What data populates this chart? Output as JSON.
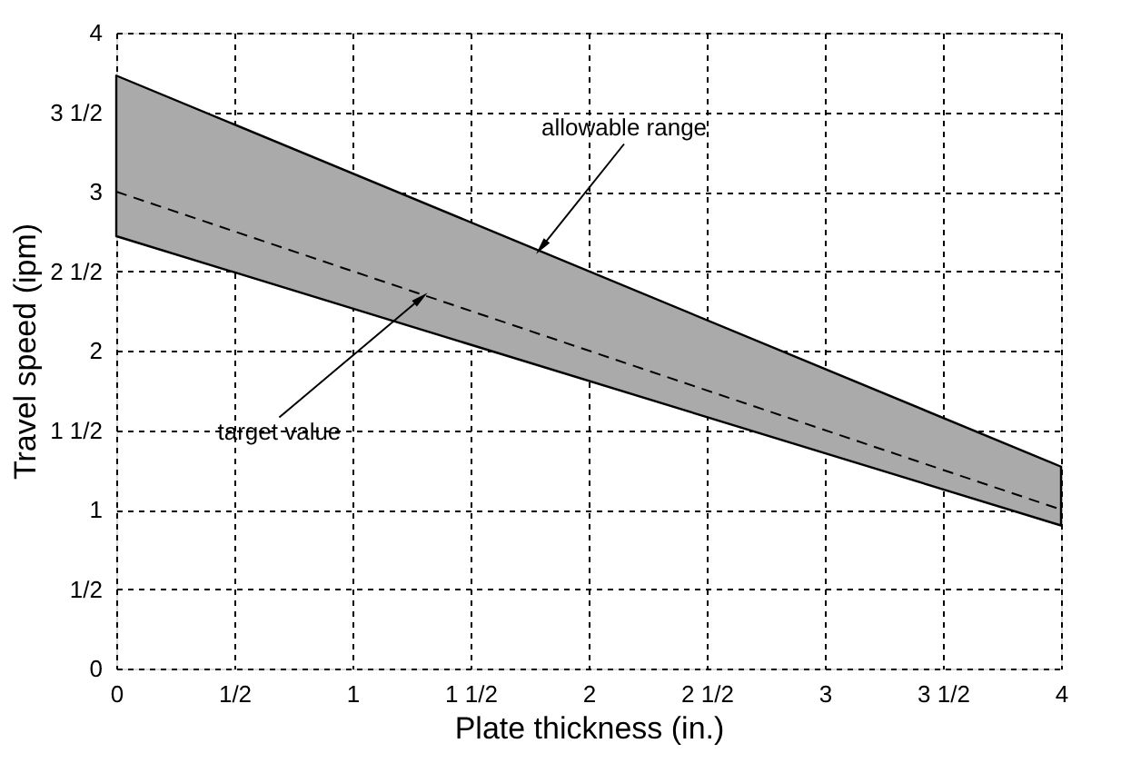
{
  "chart_data": {
    "type": "line",
    "xlabel": "Plate thickness (in.)",
    "ylabel": "Travel speed (ipm)",
    "x": [
      0,
      4
    ],
    "series": [
      {
        "color": "#000000",
        "values": [
          3.0,
          1.0
        ],
        "lower": [
          2.72,
          0.9
        ],
        "upper": [
          3.73,
          1.27
        ],
        "line_style": "dashed"
      }
    ],
    "xlim": [
      0,
      4
    ],
    "ylim": [
      0,
      4
    ],
    "xticks": [
      0,
      {
        "value": 0.5,
        "label": "1/2"
      },
      1,
      {
        "value": 1.5,
        "label": "1 1/2"
      },
      2,
      {
        "value": 2.5,
        "label": "2 1/2"
      },
      3,
      {
        "value": 3.5,
        "label": "3 1/2"
      },
      4
    ],
    "yticks": [
      0,
      {
        "value": 0.5,
        "label": "1/2"
      },
      1,
      {
        "value": 1.5,
        "label": "1 1/2"
      },
      2,
      {
        "value": 2.5,
        "label": "2 1/2"
      },
      3,
      {
        "value": 3.5,
        "label": "3 1/2"
      },
      4
    ],
    "grid": true,
    "marker": "none",
    "annotations": [
      {
        "text": "allowable range",
        "x": 1.8,
        "y": 2.65
      },
      {
        "text": "target value",
        "x": 1.29,
        "y": 2.33
      }
    ]
  }
}
